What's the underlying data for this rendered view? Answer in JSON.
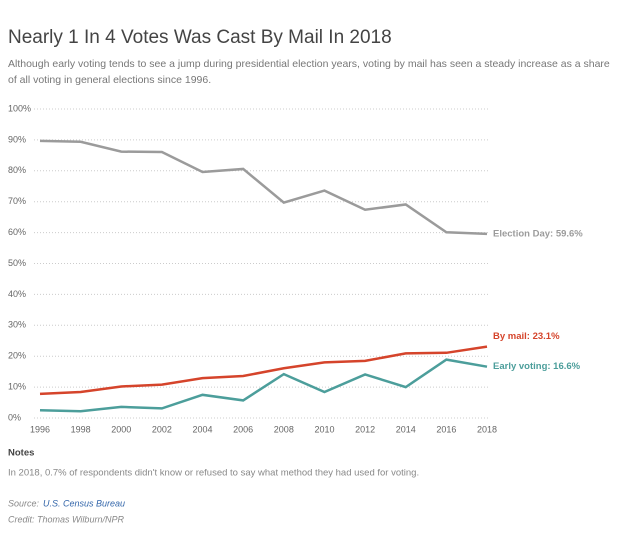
{
  "chart_data": {
    "type": "line",
    "title": "Nearly 1 In 4 Votes Was Cast By Mail In 2018",
    "subtitle": [
      "Although early voting tends to see a jump during presidential election years, voting by mail has seen a steady increase as a share",
      "of all voting in general elections since 1996."
    ],
    "x": [
      1996,
      1998,
      2000,
      2002,
      2004,
      2006,
      2008,
      2010,
      2012,
      2014,
      2016,
      2018
    ],
    "xlim": [
      1996,
      2018
    ],
    "xticks": [
      1996,
      1998,
      2000,
      2002,
      2004,
      2006,
      2008,
      2010,
      2012,
      2014,
      2016,
      2018
    ],
    "ylim": [
      0,
      100
    ],
    "yticks": [
      {
        "value": 0,
        "label": "0%"
      },
      {
        "value": 10,
        "label": "10%"
      },
      {
        "value": 20,
        "label": "20%"
      },
      {
        "value": 30,
        "label": "30%"
      },
      {
        "value": 40,
        "label": "40%"
      },
      {
        "value": 50,
        "label": "50%"
      },
      {
        "value": 60,
        "label": "60%"
      },
      {
        "value": 70,
        "label": "70%"
      },
      {
        "value": 80,
        "label": "80%"
      },
      {
        "value": 90,
        "label": "90%"
      },
      {
        "value": 100,
        "label": "100%"
      }
    ],
    "grid": true,
    "series": [
      {
        "name": "Election Day: 59.6%",
        "color": "#9b9b9b",
        "values": [
          89.7,
          89.4,
          86.2,
          86.1,
          79.6,
          80.6,
          69.7,
          73.6,
          67.4,
          69.1,
          60.1,
          59.6
        ]
      },
      {
        "name": "By mail: 23.1%",
        "color": "#d5442b",
        "values": [
          7.8,
          8.4,
          10.2,
          10.8,
          12.9,
          13.6,
          16.1,
          18.0,
          18.5,
          20.9,
          21.1,
          23.1
        ]
      },
      {
        "name": "Early voting: 16.6%",
        "color": "#4c9e9b",
        "values": [
          2.5,
          2.2,
          3.6,
          3.1,
          7.5,
          5.7,
          14.2,
          8.4,
          14.1,
          10.0,
          18.9,
          16.6
        ]
      }
    ],
    "notes_heading": "Notes",
    "note": "In 2018, 0.7% of respondents didn't know or refused to say what method they had used for voting.",
    "source_label": "Source:",
    "source": "U.S. Census Bureau",
    "credit": "Credit: Thomas Wilburn/NPR"
  }
}
